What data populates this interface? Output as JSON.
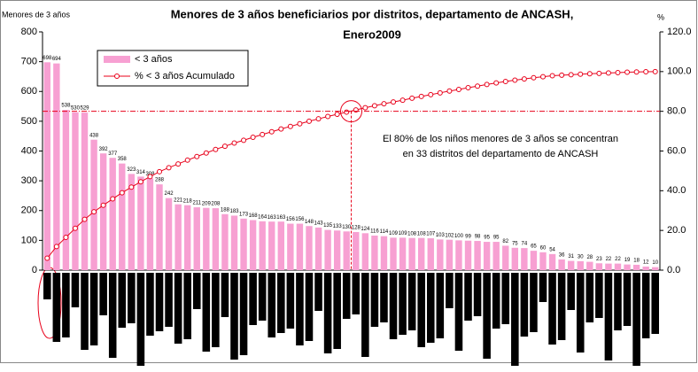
{
  "chart_data": {
    "type": "pareto",
    "title": [
      "Menores de 3 años beneficiarios por distritos, departamento de ANCASH,",
      "Enero2009"
    ],
    "ylabel": "Menores de 3 años",
    "y2label": "%",
    "annotation": [
      "El 80% de los niños menores de 3 años se concentran",
      "en 33 distritos del departamento de ANCASH"
    ],
    "ylim": [
      0,
      800
    ],
    "yticks": [
      0,
      100,
      200,
      300,
      400,
      500,
      600,
      700,
      800
    ],
    "y2lim": [
      0,
      120
    ],
    "y2ticks": [
      {
        "value": 0,
        "label": "0.0"
      },
      {
        "value": 20,
        "label": "20.0"
      },
      {
        "value": 40,
        "label": "40.0"
      },
      {
        "value": 60,
        "label": "60.0"
      },
      {
        "value": 80,
        "label": "80.0"
      },
      {
        "value": 100,
        "label": "100.0"
      },
      {
        "value": 120,
        "label": "120.0"
      }
    ],
    "legend": "upper left",
    "series": [
      {
        "name": "< 3 años",
        "color": "#f7a0d2",
        "type": "bar",
        "values": [
          698,
          694,
          538,
          530,
          529,
          438,
          392,
          377,
          358,
          323,
          314,
          308,
          288,
          242,
          221,
          218,
          211,
          209,
          208,
          188,
          183,
          173,
          168,
          164,
          163,
          163,
          156,
          156,
          148,
          143,
          135,
          133,
          130,
          128,
          124,
          116,
          114,
          109,
          109,
          108,
          108,
          107,
          103,
          102,
          100,
          99,
          98,
          95,
          95,
          82,
          75,
          74,
          65,
          60,
          54,
          36,
          31,
          30,
          28,
          23,
          22,
          22,
          19,
          18,
          12,
          10
        ]
      },
      {
        "name": "% < 3 años Acumulado",
        "color": "#e8001a",
        "type": "line",
        "axis": "y2",
        "values": [
          6.0,
          11.9,
          16.5,
          21.1,
          25.6,
          29.4,
          32.7,
          35.9,
          39.0,
          41.8,
          44.5,
          47.1,
          49.6,
          51.6,
          53.5,
          55.4,
          57.2,
          59.0,
          60.8,
          62.4,
          64.0,
          65.4,
          66.9,
          68.3,
          69.7,
          71.1,
          72.4,
          73.7,
          75.0,
          76.2,
          77.4,
          78.5,
          79.6,
          80.7,
          81.8,
          82.8,
          83.8,
          84.7,
          85.6,
          86.6,
          87.5,
          88.4,
          89.3,
          90.2,
          91.0,
          91.9,
          92.7,
          93.5,
          94.3,
          95.0,
          95.7,
          96.3,
          96.9,
          97.4,
          97.9,
          98.2,
          98.4,
          98.7,
          98.9,
          99.1,
          99.3,
          99.5,
          99.7,
          99.8,
          99.9,
          100.0
        ]
      }
    ],
    "threshold": 80,
    "threshold_index": 33
  }
}
